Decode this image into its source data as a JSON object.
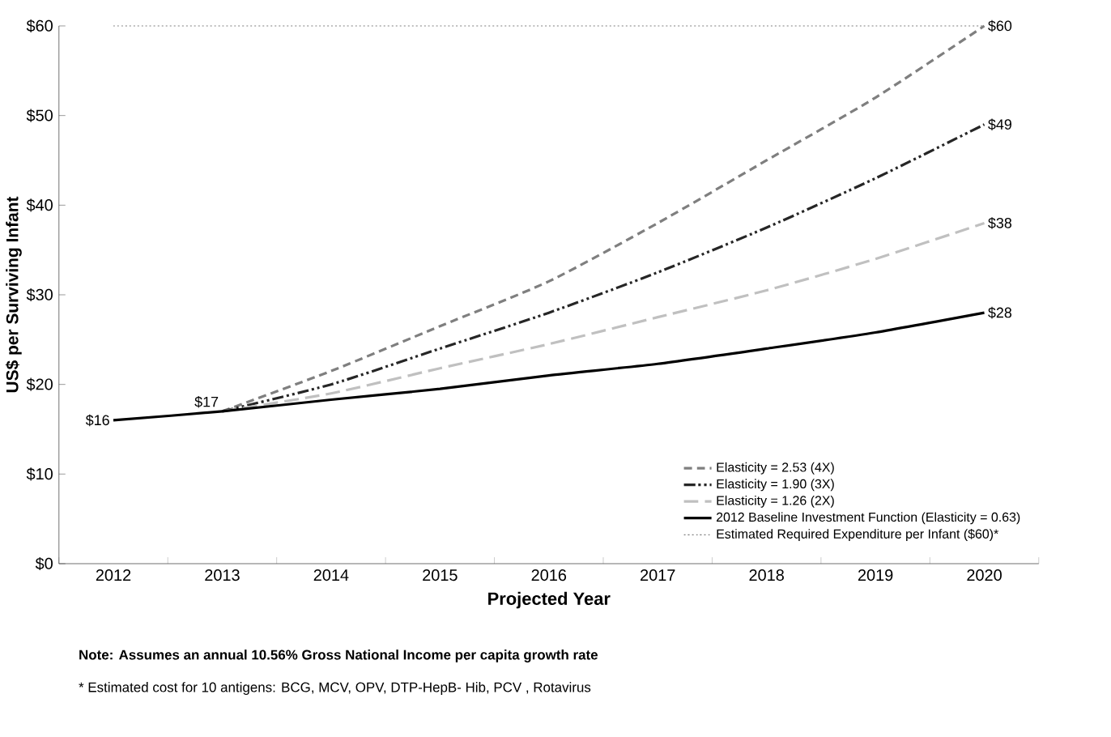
{
  "chart_data": {
    "type": "line",
    "xlabel": "Projected Year",
    "ylabel": "US$ per Surviving Infant",
    "categories": [
      "2012",
      "2013",
      "2014",
      "2015",
      "2016",
      "2017",
      "2018",
      "2019",
      "2020"
    ],
    "ylim": [
      0,
      60
    ],
    "yticks": [
      {
        "value": 0,
        "label": "$0"
      },
      {
        "value": 10,
        "label": "$10"
      },
      {
        "value": 20,
        "label": "$20"
      },
      {
        "value": 30,
        "label": "$30"
      },
      {
        "value": 40,
        "label": "$40"
      },
      {
        "value": 50,
        "label": "$50"
      },
      {
        "value": 60,
        "label": "$60"
      }
    ],
    "grid": false,
    "legend": "bottom right",
    "marker": "none",
    "series": [
      {
        "name": "Elasticity = 2.53 (4X)",
        "color": "#7f7f7f",
        "line_style": "dashed",
        "values": [
          null,
          17,
          21.5,
          26.5,
          31.5,
          38,
          45,
          52,
          60
        ],
        "value_labels": [
          null,
          null,
          null,
          null,
          null,
          null,
          null,
          null,
          "$60"
        ]
      },
      {
        "name": "Elasticity = 1.90 (3X)",
        "color": "#262626",
        "line_style": "dashdotdotted",
        "values": [
          null,
          17,
          20,
          24,
          28,
          32.5,
          37.5,
          43,
          49
        ],
        "value_labels": [
          null,
          null,
          null,
          null,
          null,
          null,
          null,
          null,
          "$49"
        ]
      },
      {
        "name": "Elasticity = 1.26 (2X)",
        "color": "#c0c0c0",
        "line_style": "loosely dashed",
        "values": [
          null,
          17,
          19,
          21.8,
          24.5,
          27.5,
          30.5,
          34,
          38
        ],
        "value_labels": [
          null,
          null,
          null,
          null,
          null,
          null,
          null,
          null,
          "$38"
        ]
      },
      {
        "name": "2012 Baseline Investment Function (Elasticity = 0.63)",
        "color": "#000000",
        "line_style": "solid",
        "values": [
          16,
          17,
          18.3,
          19.5,
          21,
          22.3,
          24,
          25.8,
          28
        ],
        "value_labels": [
          "$16",
          "$17",
          null,
          null,
          null,
          null,
          null,
          null,
          "$28"
        ]
      },
      {
        "name": "Estimated Required Expenditure per Infant ($60)*",
        "color": "#7f7f7f",
        "line_style": "dotted",
        "values": [
          60,
          60,
          60,
          60,
          60,
          60,
          60,
          60,
          60
        ]
      }
    ],
    "annotations": [
      "Note: Assumes an annual 10.56% Gross National Income per capita growth rate",
      "* Estimated cost for 10 antigens: BCG, MCV, OPV, DTP-HepB- Hib, PCV , Rotavirus"
    ]
  }
}
